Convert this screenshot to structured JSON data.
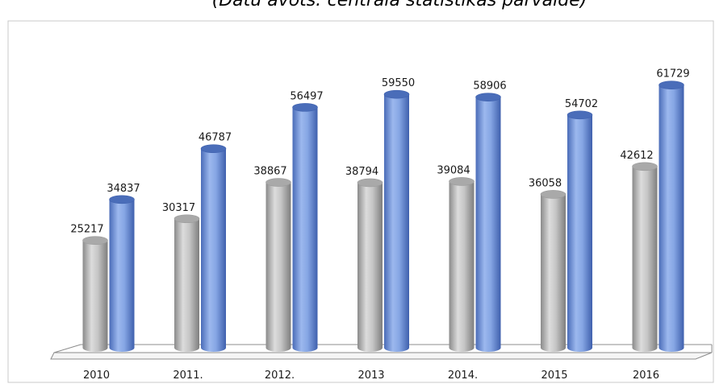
{
  "chart_data": {
    "type": "bar",
    "title": "(Datu avots: centrālā statistikas pārvalde)",
    "categories": [
      "2010",
      "2011.",
      "2012.",
      "2013",
      "2014.",
      "2015",
      "2016"
    ],
    "series": [
      {
        "color": "#bcbcbc",
        "values": [
          25217,
          30317,
          38867,
          38794,
          39084,
          36058,
          42612
        ]
      },
      {
        "color": "#7f9fe0",
        "values": [
          34837,
          46787,
          56497,
          59550,
          58906,
          54702,
          61729
        ]
      }
    ],
    "ylim": [
      0,
      70000
    ],
    "grid": false,
    "legend": "none",
    "style": "3d-cylinder"
  }
}
